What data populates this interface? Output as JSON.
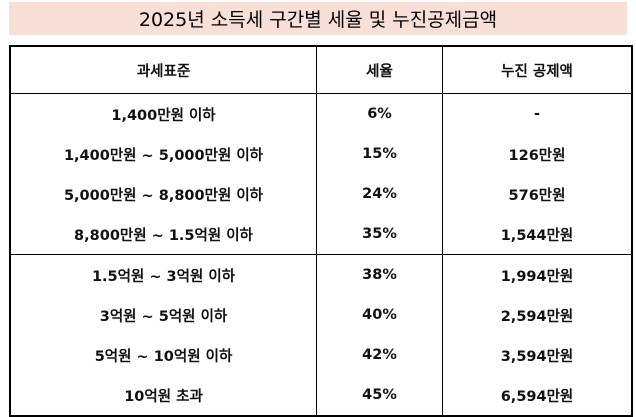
{
  "title": "2025년 소득세 구간별 세율 및 누진공제금액",
  "headers": [
    "과세표준",
    "세율",
    "누진 공제액"
  ],
  "rows": [
    {
      "bracket": "1,400만원 이하",
      "rate": "6%",
      "deduction": "-"
    },
    {
      "bracket": "1,400만원 ~ 5,000만원 이하",
      "rate": "15%",
      "deduction": "126만원"
    },
    {
      "bracket": "5,000만원 ~ 8,800만원 이하",
      "rate": "24%",
      "deduction": "576만원"
    },
    {
      "bracket": "8,800만원 ~ 1.5억원 이하",
      "rate": "35%",
      "deduction": "1,544만원"
    },
    {
      "bracket": "1.5억원 ~ 3억원 이하",
      "rate": "38%",
      "deduction": "1,994만원"
    },
    {
      "bracket": "3억원 ~ 5억원 이하",
      "rate": "40%",
      "deduction": "2,594만원"
    },
    {
      "bracket": "5억원 ~ 10억원 이하",
      "rate": "42%",
      "deduction": "3,594만원"
    },
    {
      "bracket": "10억원 초과",
      "rate": "45%",
      "deduction": "6,594만원"
    }
  ],
  "colors": {
    "title_background": "#f8dfd7",
    "border": "#000000"
  }
}
